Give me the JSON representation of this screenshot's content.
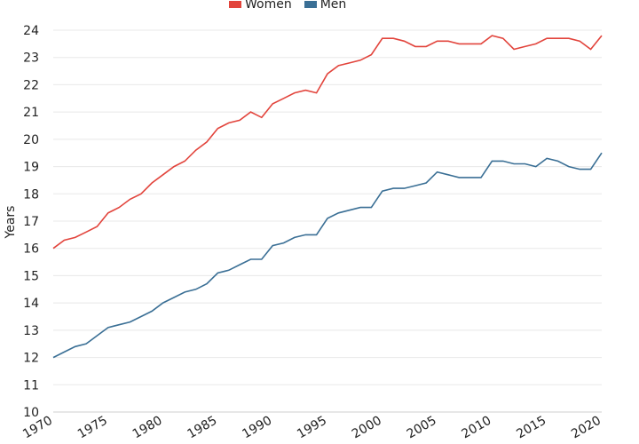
{
  "chart_data": {
    "type": "line",
    "title": "",
    "xlabel": "",
    "ylabel": "Years",
    "x": [
      1970,
      1971,
      1972,
      1973,
      1974,
      1975,
      1976,
      1977,
      1978,
      1979,
      1980,
      1981,
      1982,
      1983,
      1984,
      1985,
      1986,
      1987,
      1988,
      1989,
      1990,
      1991,
      1992,
      1993,
      1994,
      1995,
      1996,
      1997,
      1998,
      1999,
      2000,
      2001,
      2002,
      2003,
      2004,
      2005,
      2006,
      2007,
      2008,
      2009,
      2010,
      2011,
      2012,
      2013,
      2014,
      2015,
      2016,
      2017,
      2018,
      2019,
      2020
    ],
    "xticks": [
      "1970",
      "1975",
      "1980",
      "1985",
      "1990",
      "1995",
      "2000",
      "2005",
      "2010",
      "2015",
      "2020"
    ],
    "xlim": [
      1970,
      2020
    ],
    "ylim": [
      10,
      24
    ],
    "yticks": [
      "10",
      "11",
      "12",
      "13",
      "14",
      "15",
      "16",
      "17",
      "18",
      "19",
      "20",
      "21",
      "22",
      "23",
      "24"
    ],
    "grid": true,
    "legend_position": "top-center",
    "series": [
      {
        "name": "Women",
        "color": "#e2443c",
        "values": [
          16.0,
          16.3,
          16.4,
          16.6,
          16.8,
          17.3,
          17.5,
          17.8,
          18.0,
          18.4,
          18.7,
          19.0,
          19.2,
          19.6,
          19.9,
          20.4,
          20.6,
          20.7,
          21.0,
          20.8,
          21.3,
          21.5,
          21.7,
          21.8,
          21.7,
          22.4,
          22.7,
          22.8,
          22.9,
          23.1,
          23.7,
          23.7,
          23.6,
          23.4,
          23.4,
          23.6,
          23.6,
          23.5,
          23.5,
          23.5,
          23.8,
          23.7,
          23.3,
          23.4,
          23.5,
          23.7,
          23.7,
          23.7,
          23.6,
          23.3,
          23.8
        ]
      },
      {
        "name": "Men",
        "color": "#3a6f95",
        "values": [
          12.0,
          12.2,
          12.4,
          12.5,
          12.8,
          13.1,
          13.2,
          13.3,
          13.5,
          13.7,
          14.0,
          14.2,
          14.4,
          14.5,
          14.7,
          15.1,
          15.2,
          15.4,
          15.6,
          15.6,
          16.1,
          16.2,
          16.4,
          16.5,
          16.5,
          17.1,
          17.3,
          17.4,
          17.5,
          17.5,
          18.1,
          18.2,
          18.2,
          18.3,
          18.4,
          18.8,
          18.7,
          18.6,
          18.6,
          18.6,
          19.2,
          19.2,
          19.1,
          19.1,
          19.0,
          19.3,
          19.2,
          19.0,
          18.9,
          18.9,
          19.5
        ]
      }
    ]
  }
}
